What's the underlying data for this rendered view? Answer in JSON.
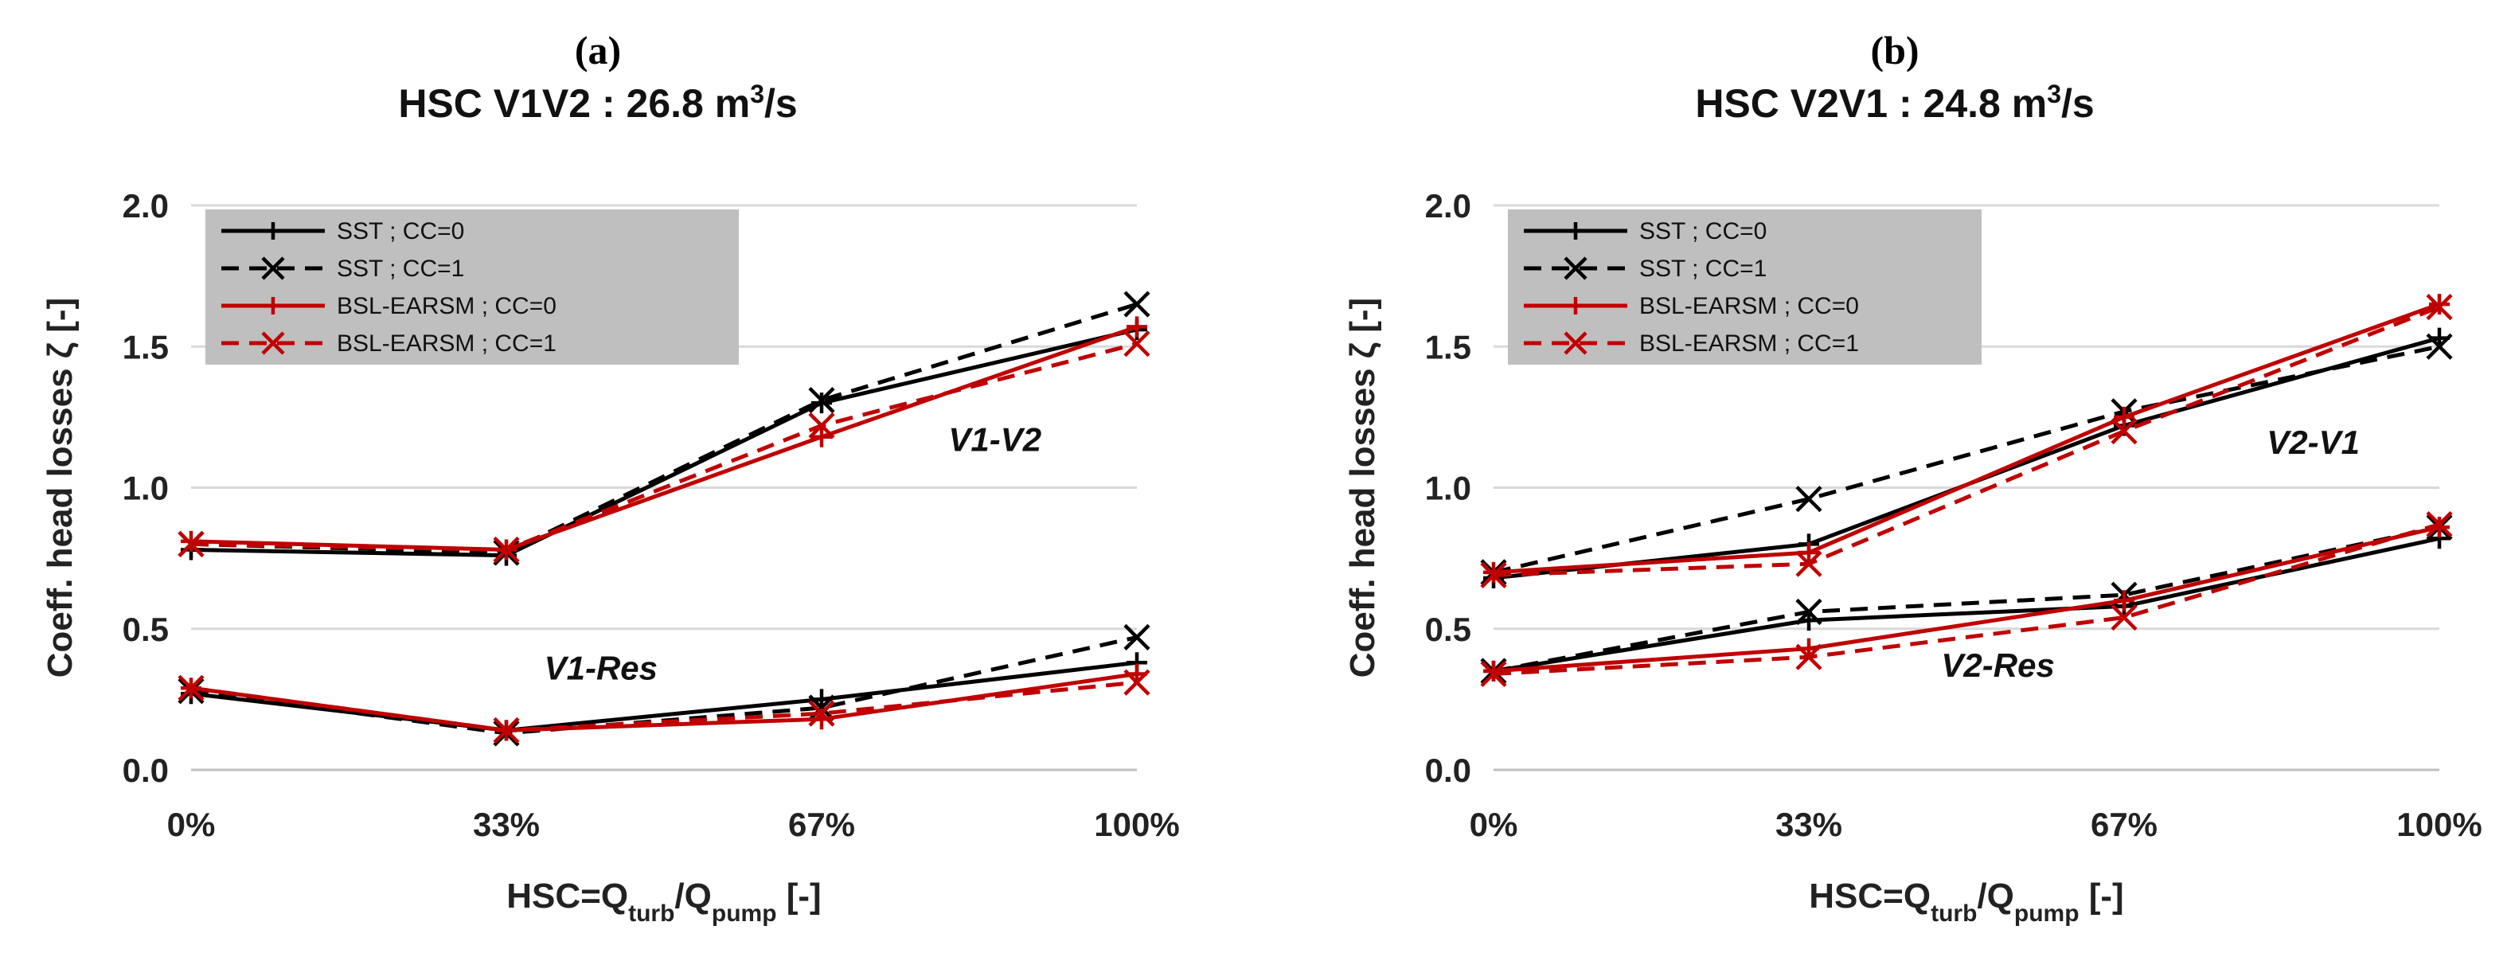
{
  "chart_data": [
    {
      "type": "line",
      "panel_label": "(a)",
      "title": "HSC V1V2 : 26.8 m³/s",
      "title_parts": {
        "main": "HSC V1V2 : 26.8 m",
        "sup": "3",
        "tail": "/s"
      },
      "categories": [
        "0%",
        "33%",
        "67%",
        "100%"
      ],
      "xlabel_parts": {
        "a": "HSC=Q",
        "sub1": "turb",
        "b": "/Q",
        "sub2": "pump",
        "c": " [-]"
      },
      "ylabel": "Coeff. head losses ζ [-]",
      "ylim": [
        0,
        2
      ],
      "yticks": [
        "0.0",
        "0.5",
        "1.0",
        "1.5",
        "2.0"
      ],
      "grid": true,
      "legend_position": "top-left",
      "legend": [
        "SST ; CC=0",
        "SST ; CC=1",
        "BSL-EARSM ; CC=0",
        "BSL-EARSM ; CC=1"
      ],
      "annotations": [
        {
          "text": "V1-V2",
          "at": [
            2.55,
            1.13
          ]
        },
        {
          "text": "V1-Res",
          "at": [
            1.3,
            0.32
          ]
        }
      ],
      "groups": [
        {
          "name": "V1-V2",
          "series": [
            {
              "name": "SST ; CC=0",
              "values": [
                0.78,
                0.76,
                1.3,
                1.56
              ]
            },
            {
              "name": "SST ; CC=1",
              "values": [
                0.8,
                0.77,
                1.31,
                1.65
              ]
            },
            {
              "name": "BSL-EARSM ; CC=0",
              "values": [
                0.81,
                0.78,
                1.18,
                1.57
              ]
            },
            {
              "name": "BSL-EARSM ; CC=1",
              "values": [
                0.8,
                0.78,
                1.22,
                1.51
              ]
            }
          ]
        },
        {
          "name": "V1-Res",
          "series": [
            {
              "name": "SST ; CC=0",
              "values": [
                0.27,
                0.14,
                0.25,
                0.38
              ]
            },
            {
              "name": "SST ; CC=1",
              "values": [
                0.28,
                0.13,
                0.22,
                0.47
              ]
            },
            {
              "name": "BSL-EARSM ; CC=0",
              "values": [
                0.29,
                0.14,
                0.18,
                0.34
              ]
            },
            {
              "name": "BSL-EARSM ; CC=1",
              "values": [
                0.29,
                0.14,
                0.2,
                0.31
              ]
            }
          ]
        }
      ]
    },
    {
      "type": "line",
      "panel_label": "(b)",
      "title": "HSC V2V1 : 24.8 m³/s",
      "title_parts": {
        "main": "HSC V2V1 : 24.8 m",
        "sup": "3",
        "tail": "/s"
      },
      "categories": [
        "0%",
        "33%",
        "67%",
        "100%"
      ],
      "xlabel_parts": {
        "a": "HSC=Q",
        "sub1": "turb",
        "b": "/Q",
        "sub2": "pump",
        "c": " [-]"
      },
      "ylabel": "Coeff. head losses ζ [-]",
      "ylim": [
        0,
        2
      ],
      "yticks": [
        "0.0",
        "0.5",
        "1.0",
        "1.5",
        "2.0"
      ],
      "grid": true,
      "legend_position": "top-left",
      "legend": [
        "SST ; CC=0",
        "SST ; CC=1",
        "BSL-EARSM ; CC=0",
        "BSL-EARSM ; CC=1"
      ],
      "annotations": [
        {
          "text": "V2-V1",
          "at": [
            2.6,
            1.12
          ]
        },
        {
          "text": "V2-Res",
          "at": [
            1.6,
            0.33
          ]
        }
      ],
      "groups": [
        {
          "name": "V2-V1",
          "series": [
            {
              "name": "SST ; CC=0",
              "values": [
                0.68,
                0.8,
                1.22,
                1.53
              ]
            },
            {
              "name": "SST ; CC=1",
              "values": [
                0.7,
                0.96,
                1.27,
                1.5
              ]
            },
            {
              "name": "BSL-EARSM ; CC=0",
              "values": [
                0.7,
                0.77,
                1.25,
                1.65
              ]
            },
            {
              "name": "BSL-EARSM ; CC=1",
              "values": [
                0.69,
                0.73,
                1.2,
                1.64
              ]
            }
          ]
        },
        {
          "name": "V2-Res",
          "series": [
            {
              "name": "SST ; CC=0",
              "values": [
                0.35,
                0.53,
                0.58,
                0.82
              ]
            },
            {
              "name": "SST ; CC=1",
              "values": [
                0.35,
                0.56,
                0.62,
                0.86
              ]
            },
            {
              "name": "BSL-EARSM ; CC=0",
              "values": [
                0.35,
                0.43,
                0.6,
                0.86
              ]
            },
            {
              "name": "BSL-EARSM ; CC=1",
              "values": [
                0.34,
                0.4,
                0.54,
                0.87
              ]
            }
          ]
        }
      ]
    }
  ],
  "styles": {
    "series": [
      {
        "name": "SST ; CC=0",
        "color": "#000000",
        "dash": "solid",
        "marker": "plus"
      },
      {
        "name": "SST ; CC=1",
        "color": "#000000",
        "dash": "dashed",
        "marker": "x"
      },
      {
        "name": "BSL-EARSM ; CC=0",
        "color": "#c00000",
        "dash": "solid",
        "marker": "plus"
      },
      {
        "name": "BSL-EARSM ; CC=1",
        "color": "#c00000",
        "dash": "dashed",
        "marker": "x"
      }
    ],
    "legend_background": "#bfbfbf",
    "grid_color": "#d9d9d9"
  }
}
